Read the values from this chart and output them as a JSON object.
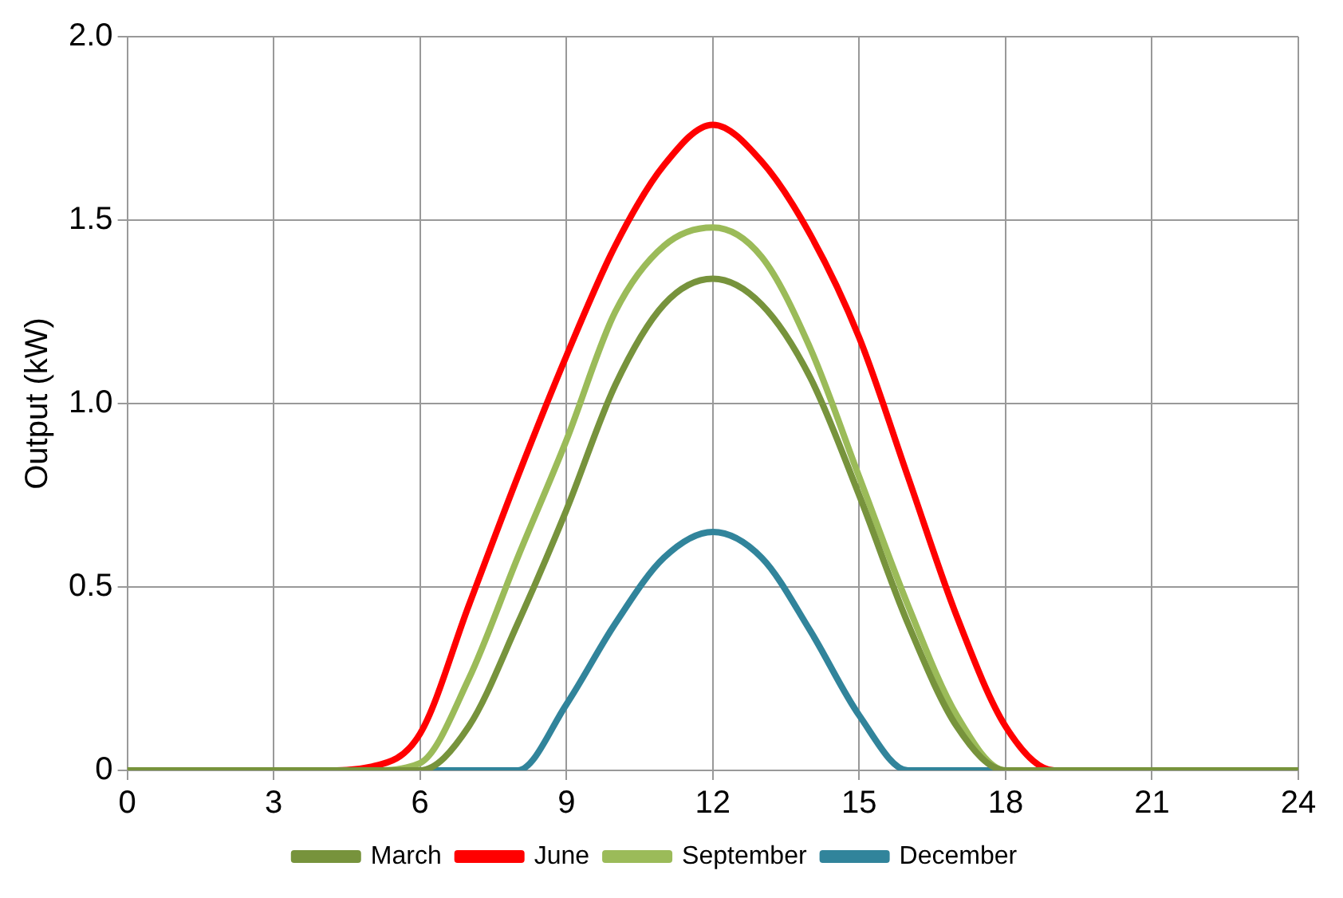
{
  "chart_data": {
    "type": "line",
    "ylabel": "Output (kW)",
    "x": [
      0,
      1,
      2,
      3,
      4,
      5,
      6,
      7,
      8,
      9,
      10,
      11,
      12,
      13,
      14,
      15,
      16,
      17,
      18,
      19,
      20,
      21,
      22,
      23,
      24
    ],
    "series": [
      {
        "name": "March",
        "color": "#77933c",
        "values": [
          0,
          0,
          0,
          0,
          0,
          0,
          0,
          0.12,
          0.4,
          0.71,
          1.05,
          1.27,
          1.34,
          1.27,
          1.07,
          0.75,
          0.4,
          0.12,
          0,
          0,
          0,
          0,
          0,
          0,
          0
        ]
      },
      {
        "name": "June",
        "color": "#ff0000",
        "values": [
          null,
          null,
          null,
          0,
          0,
          0.01,
          0.1,
          0.45,
          0.8,
          1.13,
          1.43,
          1.65,
          1.76,
          1.66,
          1.46,
          1.18,
          0.8,
          0.42,
          0.12,
          0,
          0,
          null,
          null,
          null,
          null
        ]
      },
      {
        "name": "September",
        "color": "#9bbb59",
        "values": [
          0,
          0,
          0,
          0,
          0,
          0,
          0.02,
          0.25,
          0.58,
          0.9,
          1.25,
          1.43,
          1.48,
          1.4,
          1.15,
          0.8,
          0.45,
          0.15,
          0,
          0,
          0,
          0,
          0,
          0,
          0
        ]
      },
      {
        "name": "December",
        "color": "#31849b",
        "values": [
          null,
          null,
          null,
          null,
          null,
          0,
          0,
          0,
          0,
          0.18,
          0.4,
          0.58,
          0.65,
          0.58,
          0.38,
          0.15,
          0,
          0,
          0,
          0,
          null,
          null,
          null,
          null,
          null
        ]
      }
    ],
    "xlim": [
      0,
      24
    ],
    "xticks": [
      0,
      3,
      6,
      9,
      12,
      15,
      18,
      21,
      24
    ],
    "ylim": [
      0,
      2
    ],
    "yticks": [
      0,
      0.5,
      {
        "value": 1,
        "label": "1.0"
      },
      1.5,
      {
        "value": 2,
        "label": "2.0"
      }
    ],
    "grid": true,
    "legend": "bottom",
    "marker": "none",
    "line_style": "solid"
  }
}
